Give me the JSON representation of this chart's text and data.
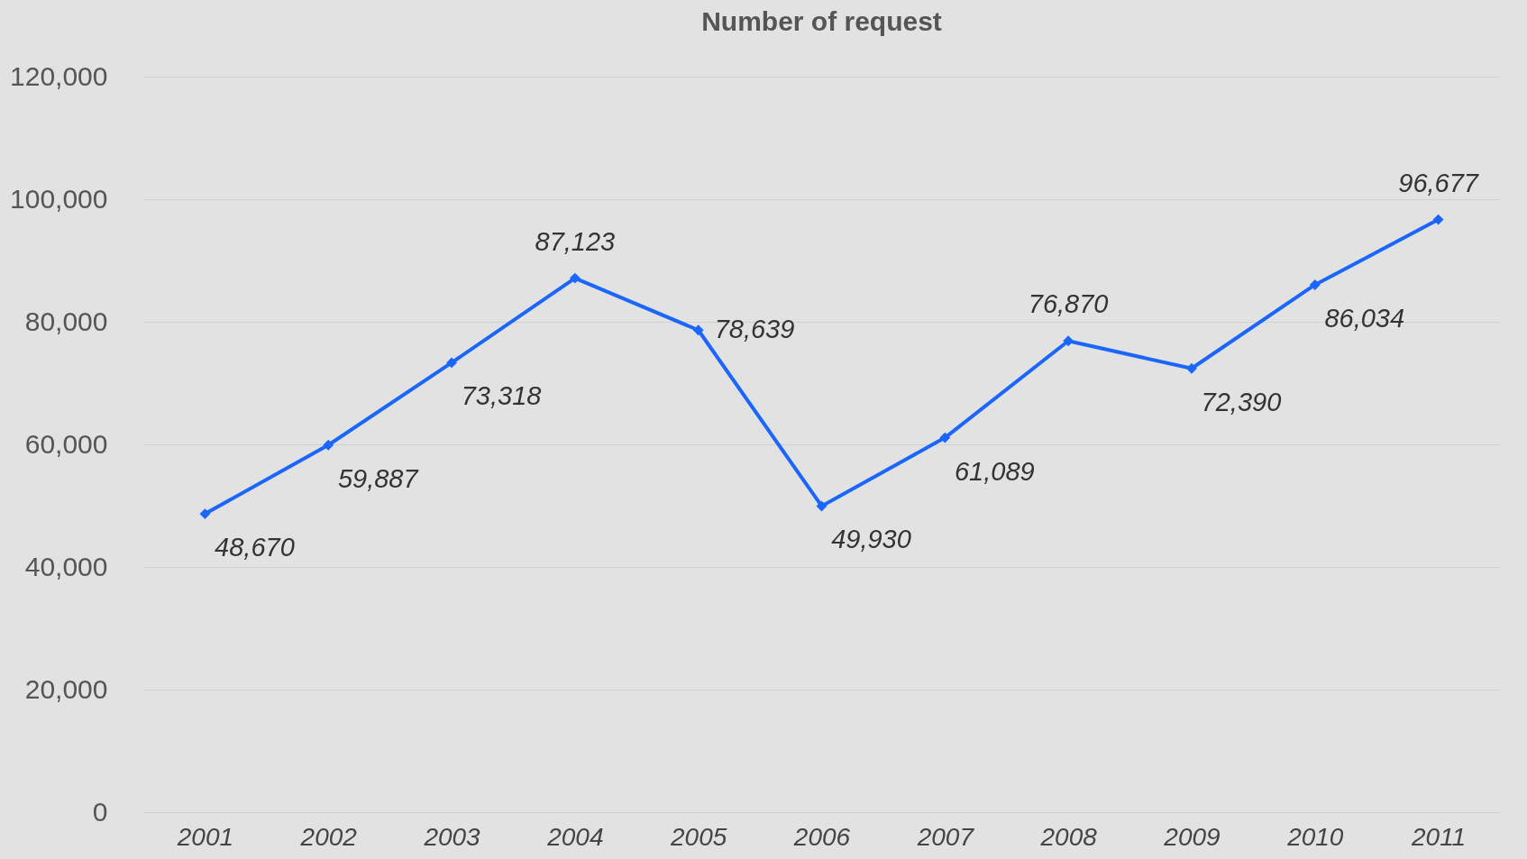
{
  "chart_data": {
    "type": "line",
    "title": "Number of request",
    "categories": [
      "2001",
      "2002",
      "2003",
      "2004",
      "2005",
      "2006",
      "2007",
      "2008",
      "2009",
      "2010",
      "2011"
    ],
    "series": [
      {
        "color": "#1a66ff",
        "values": [
          48670,
          59887,
          73318,
          87123,
          78639,
          49930,
          61089,
          76870,
          72390,
          86034,
          96677
        ],
        "value_labels": [
          "48,670",
          "59,887",
          "73,318",
          "87,123",
          "78,639",
          "49,930",
          "61,089",
          "76,870",
          "72,390",
          "86,034",
          "96,677"
        ]
      }
    ],
    "ylim": [
      0,
      120000
    ],
    "yticks": [
      0,
      {
        "value": 20000,
        "label": "20,000"
      },
      {
        "value": 40000,
        "label": "40,000"
      },
      {
        "value": 60000,
        "label": "60,000"
      },
      {
        "value": 80000,
        "label": "80,000"
      },
      {
        "value": 100000,
        "label": "100,000"
      },
      {
        "value": 120000,
        "label": "120,000"
      }
    ],
    "grid": "y",
    "marker": "diamond",
    "line_style": "solid"
  }
}
